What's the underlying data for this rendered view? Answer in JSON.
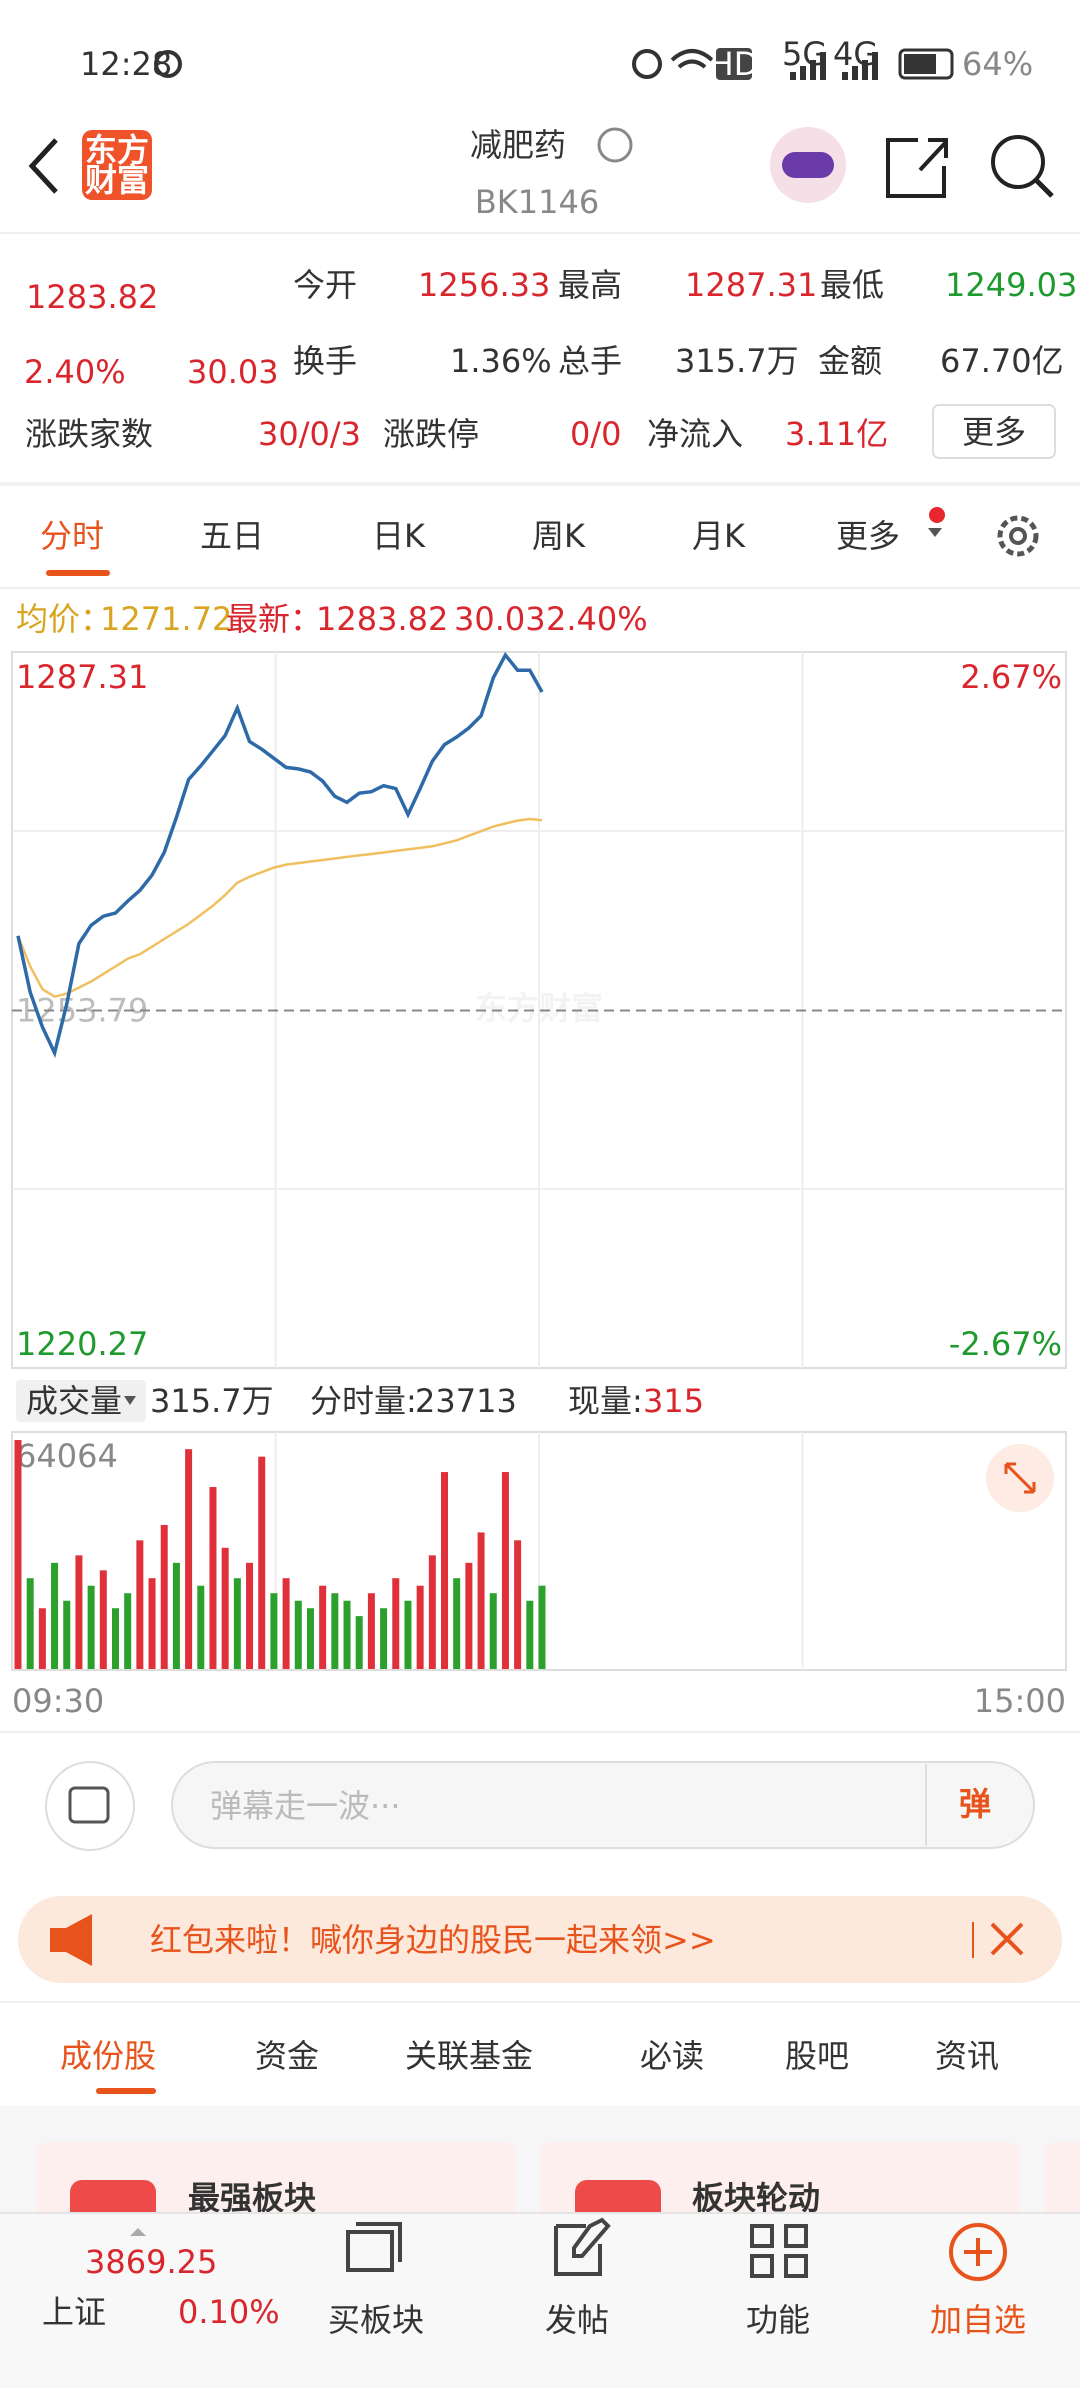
{
  "status_bar": {
    "time": "12:28",
    "hd": "HD",
    "net1": "5G",
    "net2": "4G",
    "battery": "64%"
  },
  "header": {
    "logo_line1": "东方",
    "logo_line2": "财富",
    "title": "减肥药",
    "code": "BK1146"
  },
  "quote": {
    "price": "1283.82",
    "change_pct": "2.40%",
    "change": "30.03",
    "stats": [
      {
        "label": "今开",
        "value": "1256.33"
      },
      {
        "label": "最高",
        "value": "1287.31"
      },
      {
        "label": "最低",
        "value": "1249.03"
      },
      {
        "label": "换手",
        "value": "1.36%"
      },
      {
        "label": "总手",
        "value": "315.7万"
      },
      {
        "label": "金额",
        "value": "67.70亿"
      },
      {
        "label": "涨跌家数",
        "value": "30/0/3"
      },
      {
        "label": "涨跌停",
        "value": "0/0"
      },
      {
        "label": "净流入",
        "value": "3.11亿"
      }
    ],
    "more_button": "更多"
  },
  "period_tabs": [
    "分时",
    "五日",
    "日K",
    "周K",
    "月K",
    "更多"
  ],
  "info_line": {
    "avg_label": "均价：",
    "avg": "1271.72",
    "latest_label": "最新：",
    "latest": "1283.82",
    "change": "30.03",
    "change_pct": "2.40%"
  },
  "watermark": "东方财富",
  "chart_data": [
    {
      "type": "line",
      "ylim": [
        1220.27,
        1287.31
      ],
      "yticks": [
        1220.27,
        1253.79,
        1287.31
      ],
      "y2lim": [
        -2.67,
        2.67
      ],
      "y2ticks": [
        {
          "value": -2.67,
          "label": "-2.67%"
        },
        {
          "value": 2.67,
          "label": "2.67%"
        }
      ],
      "series": [
        {
          "color": "#2e6aa8",
          "values": [
            1260.82,
            1255.52,
            1252.23,
            1249.79,
            1254.37,
            1260.1,
            1261.82,
            1262.68,
            1262.97,
            1264.11,
            1265.11,
            1266.55,
            1268.69,
            1271.99,
            1275.57,
            1276.86,
            1278.29,
            1279.72,
            1282.3,
            1279.15,
            1278.43,
            1277.57,
            1276.71,
            1276.57,
            1276.28,
            1275.42,
            1273.99,
            1273.42,
            1274.28,
            1274.42,
            1274.99,
            1274.71,
            1272.27,
            1274.71,
            1277.29,
            1278.86,
            1279.58,
            1280.44,
            1281.58,
            1285.16,
            1287.31,
            1285.88,
            1285.88,
            1283.82
          ]
        },
        {
          "color": "#f0c060",
          "values": [
            1260.82,
            1257.95,
            1255.81,
            1255.09,
            1255.38,
            1255.95,
            1256.52,
            1257.24,
            1257.95,
            1258.67,
            1259.1,
            1259.81,
            1260.53,
            1261.25,
            1261.96,
            1262.82,
            1263.68,
            1264.69,
            1265.83,
            1266.4,
            1266.83,
            1267.26,
            1267.55,
            1267.69,
            1267.84,
            1267.98,
            1268.12,
            1268.27,
            1268.41,
            1268.55,
            1268.69,
            1268.84,
            1268.98,
            1269.12,
            1269.27,
            1269.55,
            1269.84,
            1270.27,
            1270.7,
            1271.13,
            1271.42,
            1271.7,
            1271.85,
            1271.72
          ]
        }
      ]
    },
    {
      "type": "bar",
      "ylim": [
        0,
        64064
      ],
      "yticks": [
        64064
      ],
      "values": [
        64064,
        25400,
        17000,
        29700,
        19100,
        31800,
        23300,
        27600,
        17000,
        21200,
        36000,
        25400,
        40300,
        29700,
        61500,
        23300,
        50900,
        33900,
        25400,
        29700,
        59400,
        21200,
        25400,
        19100,
        17000,
        23300,
        21200,
        19100,
        14800,
        21200,
        17000,
        25400,
        19100,
        23300,
        31800,
        55100,
        25400,
        29700,
        38200,
        21200,
        55100,
        36000,
        19100,
        23300
      ],
      "colors": [
        "#e0303a",
        "#2ca02c",
        "#e0303a",
        "#2ca02c",
        "#2ca02c",
        "#e0303a",
        "#2ca02c",
        "#e0303a",
        "#2ca02c",
        "#2ca02c",
        "#e0303a",
        "#e0303a",
        "#e0303a",
        "#2ca02c",
        "#e0303a",
        "#2ca02c",
        "#e0303a",
        "#e0303a",
        "#2ca02c",
        "#e0303a",
        "#e0303a",
        "#2ca02c",
        "#e0303a",
        "#2ca02c",
        "#2ca02c",
        "#e0303a",
        "#2ca02c",
        "#2ca02c",
        "#2ca02c",
        "#e0303a",
        "#2ca02c",
        "#e0303a",
        "#2ca02c",
        "#e0303a",
        "#e0303a",
        "#e0303a",
        "#2ca02c",
        "#e0303a",
        "#e0303a",
        "#2ca02c",
        "#e0303a",
        "#e0303a",
        "#2ca02c",
        "#2ca02c"
      ]
    }
  ],
  "volume_bar": {
    "selector": "成交量",
    "total": "315.7万",
    "minute_label": "分时量:",
    "minute_value": "23713",
    "current_label": "现量:",
    "current_value": "315"
  },
  "time_axis": [
    "09:30",
    "15:00"
  ],
  "comment": {
    "placeholder": "弹幕走一波···",
    "button": "弹"
  },
  "banner": "红包来啦！喊你身边的股民一起来领>>",
  "content_tabs": [
    "成份股",
    "资金",
    "关联基金",
    "必读",
    "股吧",
    "资讯"
  ],
  "cards": [
    "最强板块",
    "板块轮动"
  ],
  "bottom_nav": {
    "index_value": "3869.25",
    "index_name": "上证",
    "index_pct": "0.10%",
    "items": [
      "买板块",
      "发帖",
      "功能",
      "加自选"
    ]
  }
}
